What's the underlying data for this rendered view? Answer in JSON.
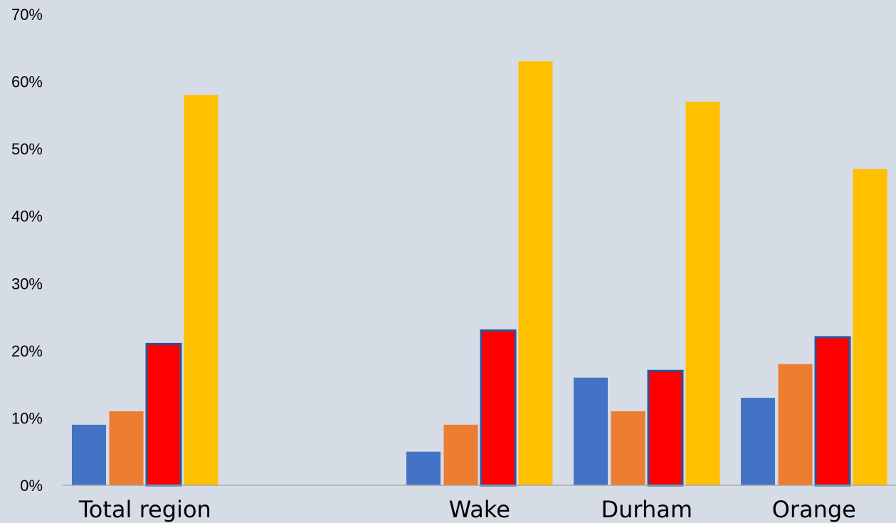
{
  "chart_data": {
    "type": "bar",
    "title": "",
    "xlabel": "",
    "ylabel": "",
    "ylim": [
      0,
      70
    ],
    "yticks": [
      "0%",
      "10%",
      "20%",
      "30%",
      "40%",
      "50%",
      "60%",
      "70%"
    ],
    "grid": false,
    "legend": "none",
    "categories": [
      "Total region",
      "",
      "Wake",
      "Durham",
      "Orange"
    ],
    "series": [
      {
        "values": [
          9,
          null,
          5,
          16,
          13
        ],
        "color": "#4472C4"
      },
      {
        "values": [
          11,
          null,
          9,
          11,
          18
        ],
        "color": "#ED7D31"
      },
      {
        "values": [
          21,
          null,
          23,
          17,
          22
        ],
        "color": "#FF0000",
        "outline": "#2F5597"
      },
      {
        "values": [
          58,
          null,
          63,
          57,
          47
        ],
        "color": "#FFC000"
      }
    ],
    "axis_color": "#A6A6A6",
    "background": "#D6DCE5"
  }
}
